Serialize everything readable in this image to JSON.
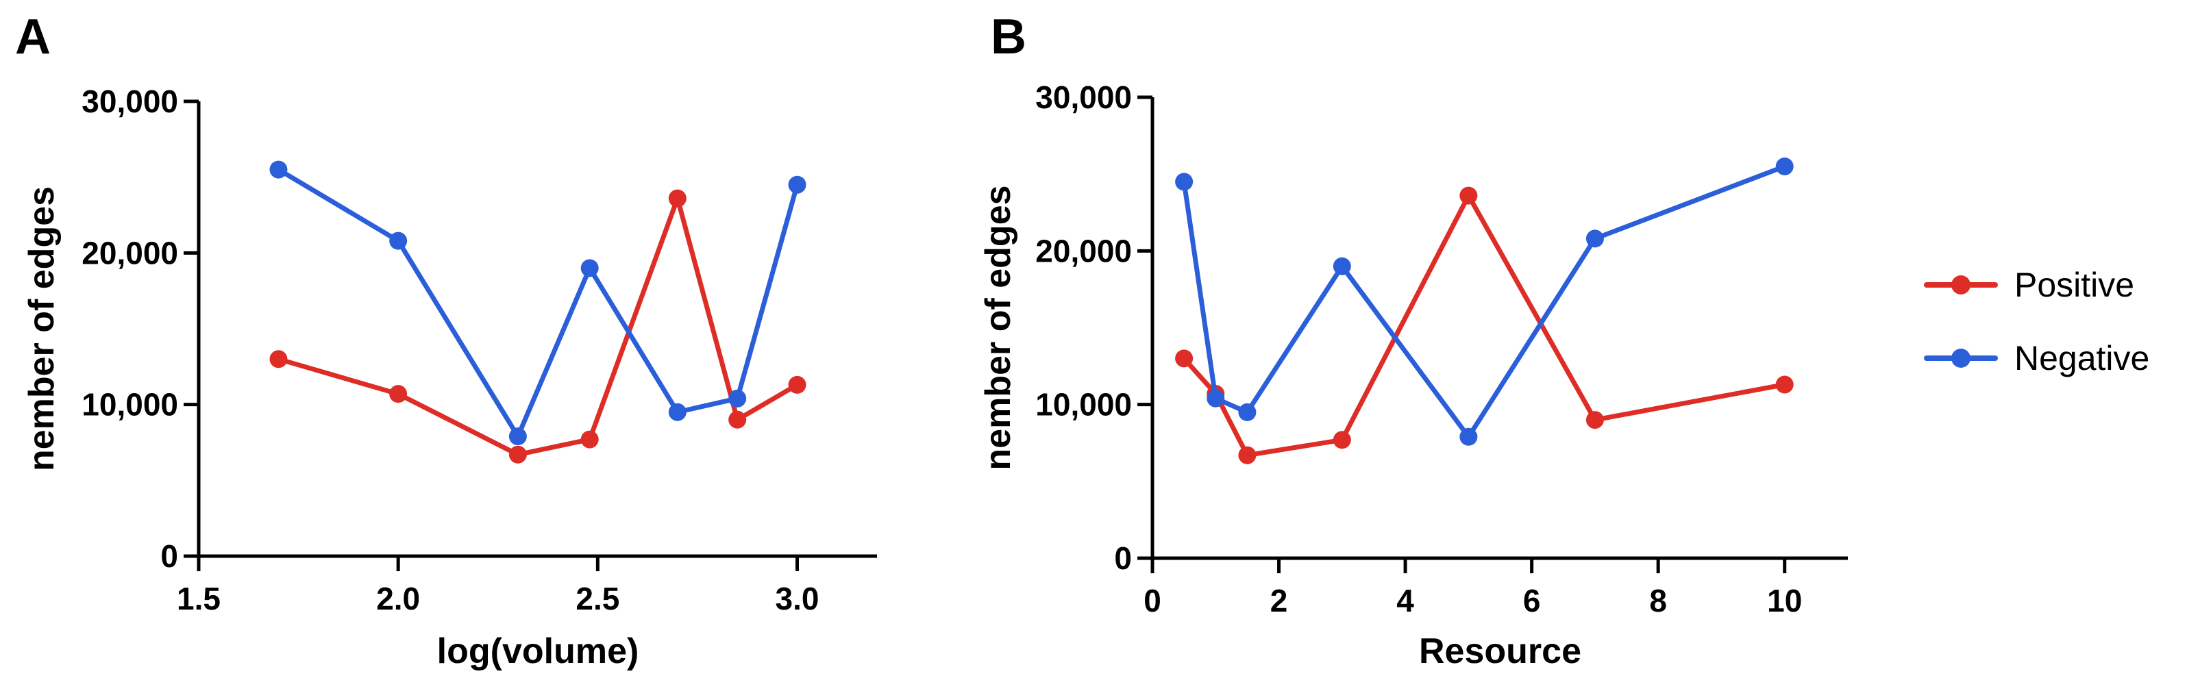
{
  "colors": {
    "positive": "#de2d26",
    "negative": "#2b5fd9",
    "axis": "#000000"
  },
  "legend": {
    "placement": "right",
    "items": [
      {
        "name": "Positive",
        "color_key": "positive"
      },
      {
        "name": "Negative",
        "color_key": "negative"
      }
    ]
  },
  "chart_data": [
    {
      "panel_label": "A",
      "type": "line",
      "xlabel": "log(volume)",
      "ylabel": "nember of edges",
      "xlim": [
        1.5,
        3.2
      ],
      "ylim": [
        0,
        30000
      ],
      "xticks": [
        1.5,
        2.0,
        2.5,
        3.0
      ],
      "xtick_labels": [
        "1.5",
        "2.0",
        "2.5",
        "3.0"
      ],
      "yticks": [
        0,
        10000,
        20000,
        30000
      ],
      "ytick_labels": [
        "0",
        "10,000",
        "20,000",
        "30,000"
      ],
      "series": [
        {
          "name": "Positive",
          "color_key": "positive",
          "x": [
            1.7,
            2.0,
            2.3,
            2.48,
            2.7,
            2.85,
            3.0
          ],
          "y": [
            13000,
            10700,
            6700,
            7700,
            23600,
            9000,
            11300
          ]
        },
        {
          "name": "Negative",
          "color_key": "negative",
          "x": [
            1.7,
            2.0,
            2.3,
            2.48,
            2.7,
            2.85,
            3.0
          ],
          "y": [
            25500,
            20800,
            7900,
            19000,
            9500,
            10400,
            24500
          ]
        }
      ]
    },
    {
      "panel_label": "B",
      "type": "line",
      "xlabel": "Resource",
      "ylabel": "nember of edges",
      "xlim": [
        0,
        11
      ],
      "ylim": [
        0,
        30000
      ],
      "xticks": [
        0,
        2,
        4,
        6,
        8,
        10
      ],
      "xtick_labels": [
        "0",
        "2",
        "4",
        "6",
        "8",
        "10"
      ],
      "yticks": [
        0,
        10000,
        20000,
        30000
      ],
      "ytick_labels": [
        "0",
        "10,000",
        "20,000",
        "30,000"
      ],
      "series": [
        {
          "name": "Positive",
          "color_key": "positive",
          "x": [
            0.5,
            1.0,
            1.5,
            3,
            5,
            7,
            10
          ],
          "y": [
            13000,
            10700,
            6700,
            7700,
            23600,
            9000,
            11300
          ]
        },
        {
          "name": "Negative",
          "color_key": "negative",
          "x": [
            0.5,
            1.0,
            1.5,
            3,
            5,
            7,
            10
          ],
          "y": [
            24500,
            10400,
            9500,
            19000,
            7900,
            20800,
            25500
          ]
        }
      ]
    }
  ]
}
